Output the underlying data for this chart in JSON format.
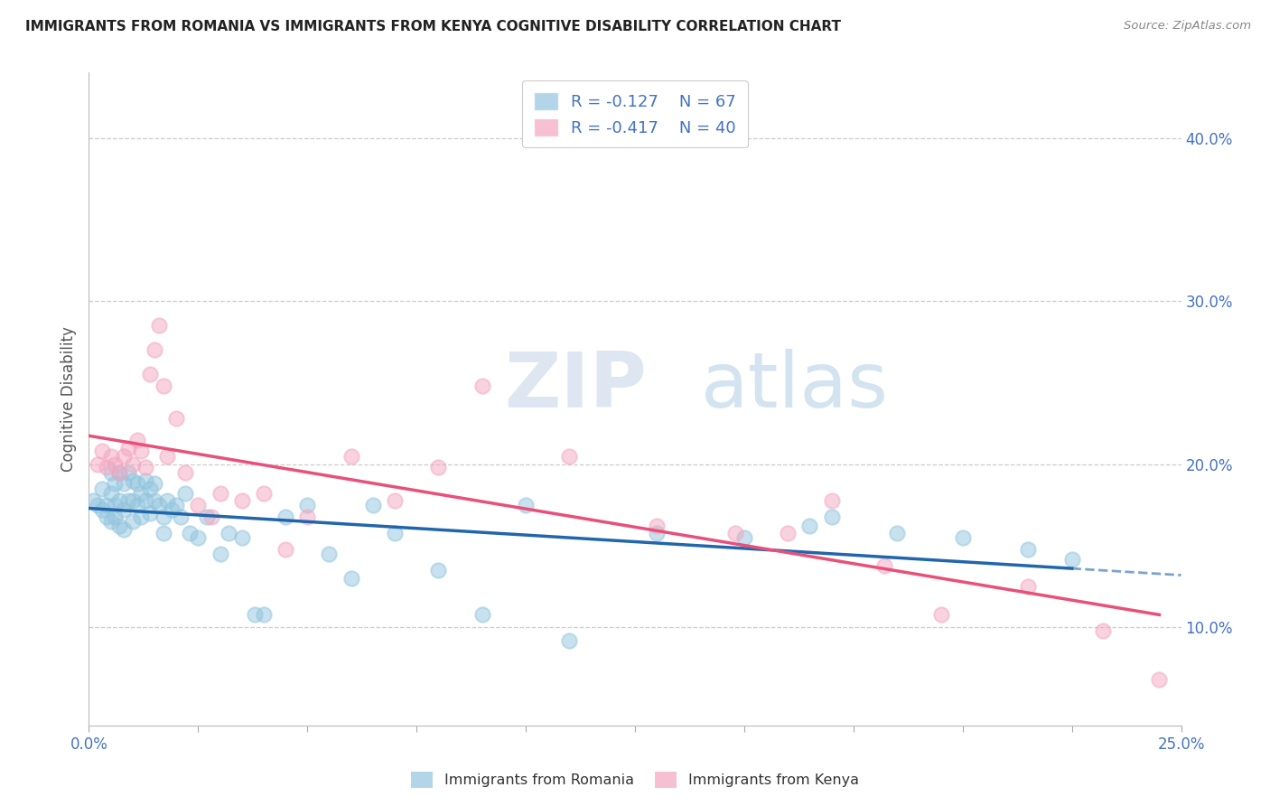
{
  "title": "IMMIGRANTS FROM ROMANIA VS IMMIGRANTS FROM KENYA COGNITIVE DISABILITY CORRELATION CHART",
  "source": "Source: ZipAtlas.com",
  "ylabel": "Cognitive Disability",
  "xlim": [
    0.0,
    0.25
  ],
  "ylim": [
    0.04,
    0.44
  ],
  "xtick_positions": [
    0.0,
    0.025,
    0.05,
    0.075,
    0.1,
    0.125,
    0.15,
    0.175,
    0.2,
    0.225,
    0.25
  ],
  "xtick_labels_shown": {
    "0.0": "0.0%",
    "0.25": "25.0%"
  },
  "ytick_positions": [
    0.1,
    0.2,
    0.3,
    0.4
  ],
  "ytick_labels": [
    "10.0%",
    "20.0%",
    "30.0%",
    "40.0%"
  ],
  "legend_romania": "Immigrants from Romania",
  "legend_kenya": "Immigrants from Kenya",
  "R_romania": -0.127,
  "N_romania": 67,
  "R_kenya": -0.417,
  "N_kenya": 40,
  "color_romania": "#92c5de",
  "color_kenya": "#f4a6c0",
  "color_romania_line": "#2166ac",
  "color_kenya_line": "#e8507a",
  "background_color": "#ffffff",
  "grid_color": "#cccccc",
  "title_color": "#222222",
  "axis_label_color": "#555555",
  "tick_label_color": "#4472c4",
  "watermark_color": "#c8dff0",
  "romania_scatter_x": [
    0.001,
    0.002,
    0.003,
    0.003,
    0.004,
    0.004,
    0.005,
    0.005,
    0.005,
    0.006,
    0.006,
    0.006,
    0.007,
    0.007,
    0.007,
    0.008,
    0.008,
    0.008,
    0.009,
    0.009,
    0.01,
    0.01,
    0.01,
    0.011,
    0.011,
    0.012,
    0.012,
    0.013,
    0.013,
    0.014,
    0.014,
    0.015,
    0.015,
    0.016,
    0.017,
    0.017,
    0.018,
    0.019,
    0.02,
    0.021,
    0.022,
    0.023,
    0.025,
    0.027,
    0.03,
    0.032,
    0.035,
    0.038,
    0.04,
    0.045,
    0.05,
    0.055,
    0.06,
    0.065,
    0.07,
    0.08,
    0.09,
    0.1,
    0.11,
    0.13,
    0.15,
    0.165,
    0.17,
    0.185,
    0.2,
    0.215,
    0.225
  ],
  "romania_scatter_y": [
    0.178,
    0.175,
    0.172,
    0.185,
    0.175,
    0.168,
    0.195,
    0.182,
    0.165,
    0.188,
    0.175,
    0.168,
    0.195,
    0.178,
    0.162,
    0.188,
    0.172,
    0.16,
    0.195,
    0.178,
    0.19,
    0.178,
    0.165,
    0.188,
    0.175,
    0.182,
    0.168,
    0.19,
    0.178,
    0.185,
    0.17,
    0.188,
    0.178,
    0.175,
    0.168,
    0.158,
    0.178,
    0.172,
    0.175,
    0.168,
    0.182,
    0.158,
    0.155,
    0.168,
    0.145,
    0.158,
    0.155,
    0.108,
    0.108,
    0.168,
    0.175,
    0.145,
    0.13,
    0.175,
    0.158,
    0.135,
    0.108,
    0.175,
    0.092,
    0.158,
    0.155,
    0.162,
    0.168,
    0.158,
    0.155,
    0.148,
    0.142
  ],
  "kenya_scatter_x": [
    0.002,
    0.003,
    0.004,
    0.005,
    0.006,
    0.007,
    0.008,
    0.009,
    0.01,
    0.011,
    0.012,
    0.013,
    0.014,
    0.015,
    0.016,
    0.017,
    0.018,
    0.02,
    0.022,
    0.025,
    0.028,
    0.03,
    0.035,
    0.04,
    0.045,
    0.05,
    0.06,
    0.07,
    0.08,
    0.09,
    0.11,
    0.13,
    0.148,
    0.16,
    0.17,
    0.182,
    0.195,
    0.215,
    0.232,
    0.245
  ],
  "kenya_scatter_y": [
    0.2,
    0.208,
    0.198,
    0.205,
    0.2,
    0.195,
    0.205,
    0.21,
    0.2,
    0.215,
    0.208,
    0.198,
    0.255,
    0.27,
    0.285,
    0.248,
    0.205,
    0.228,
    0.195,
    0.175,
    0.168,
    0.182,
    0.178,
    0.182,
    0.148,
    0.168,
    0.205,
    0.178,
    0.198,
    0.248,
    0.205,
    0.162,
    0.158,
    0.158,
    0.178,
    0.138,
    0.108,
    0.125,
    0.098,
    0.068
  ]
}
